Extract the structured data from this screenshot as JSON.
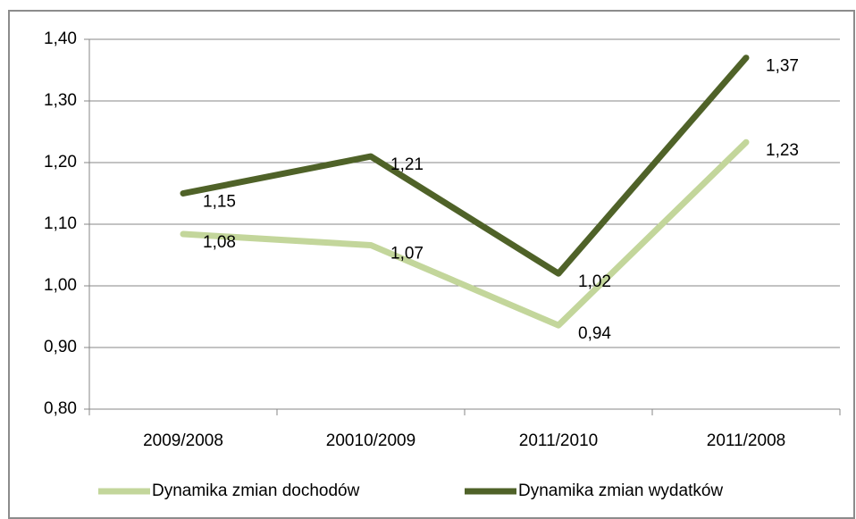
{
  "chart_data": {
    "type": "line",
    "categories": [
      "2009/2008",
      "20010/2009",
      "2011/2010",
      "2011/2008"
    ],
    "series": [
      {
        "name": "Dynamika zmian dochodów",
        "color": "#c3d69b",
        "values": [
          1.084,
          1.066,
          0.936,
          1.233
        ],
        "value_labels": [
          "1,08",
          "1,07",
          "0,94",
          "1,23"
        ]
      },
      {
        "name": "Dynamika zmian wydatków",
        "color": "#4f6228",
        "values": [
          1.15,
          1.21,
          1.02,
          1.37
        ],
        "value_labels": [
          "1,15",
          "1,21",
          "1,02",
          "1,37"
        ]
      }
    ],
    "ylim": [
      0.8,
      1.4
    ],
    "yticks": [
      {
        "value": 0.8,
        "label": "0,80"
      },
      {
        "value": 0.9,
        "label": "0,90"
      },
      {
        "value": 1.0,
        "label": "1,00"
      },
      {
        "value": 1.1,
        "label": "1,10"
      },
      {
        "value": 1.2,
        "label": "1,20"
      },
      {
        "value": 1.3,
        "label": "1,30"
      },
      {
        "value": 1.4,
        "label": "1,40"
      }
    ],
    "grid": true,
    "legend": "bottom"
  }
}
